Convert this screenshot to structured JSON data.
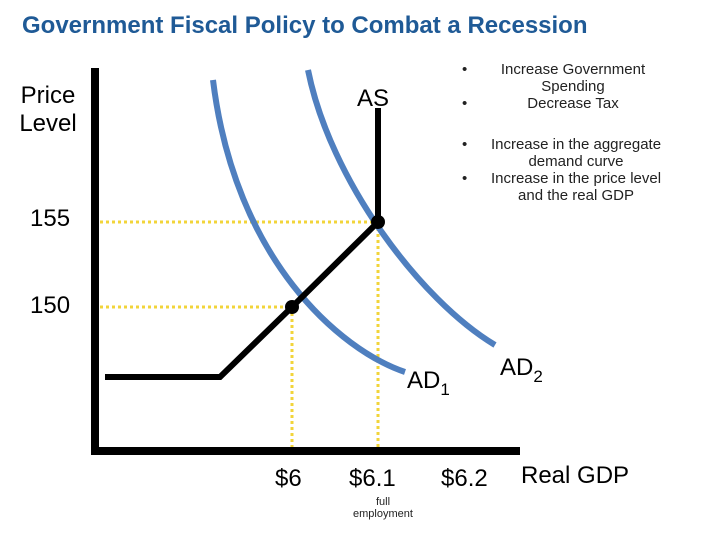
{
  "title": "Government Fiscal Policy to Combat a Recession",
  "axes": {
    "y_label_line1": "Price",
    "y_label_line2": "Level",
    "x_label": "Real GDP"
  },
  "y_ticks": [
    "155",
    "150"
  ],
  "x_ticks": [
    "$6",
    "$6.1",
    "$6.2"
  ],
  "x_note_line1": "full",
  "x_note_line2": "employment",
  "curves": {
    "as_label": "AS",
    "ad1_label": "AD",
    "ad1_sub": "1",
    "ad2_label": "AD",
    "ad2_sub": "2"
  },
  "policy_bullets": [
    "Increase Government Spending",
    "Decrease Tax"
  ],
  "effect_bullets": [
    "Increase in the aggregate demand curve",
    "Increase in the price level and the real GDP"
  ],
  "equilibria": [
    {
      "real_gdp": "$6",
      "price_level": 150
    },
    {
      "real_gdp": "$6.1",
      "price_level": 155
    }
  ],
  "colors": {
    "title": "#1f5a96",
    "ad_curve": "#4f7fbf",
    "guide_lines": "#f2d43a",
    "axes_and_as": "#000000"
  }
}
